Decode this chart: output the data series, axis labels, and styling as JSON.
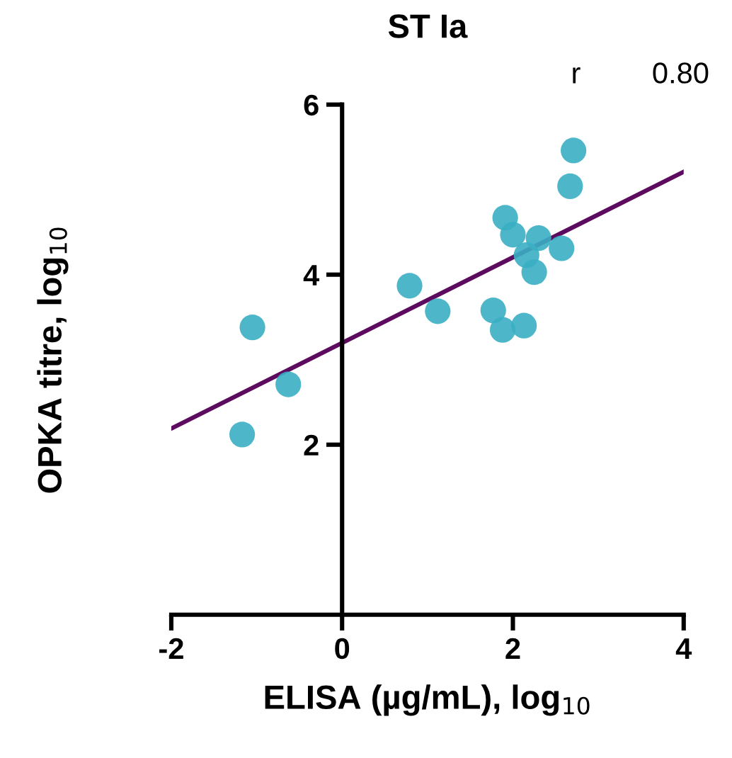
{
  "chart_data": {
    "type": "scatter",
    "title": "ST Ia",
    "xlabel": "ELISA (µg/mL), log$_{10}$",
    "ylabel": "OPKA titre, log$_{10}$",
    "annotations": [
      "r",
      "0.80"
    ],
    "xlim": [
      -2,
      4
    ],
    "ylim": [
      0,
      6
    ],
    "xticks": [
      -2,
      0,
      2,
      4
    ],
    "yticks": [
      2,
      4,
      6
    ],
    "grid": false,
    "legend": false,
    "series": [
      {
        "color": "#3aafc3",
        "marker": "circle",
        "x": [
          -1.05,
          -0.63,
          -1.17,
          0.79,
          1.12,
          1.77,
          1.88,
          2.13,
          1.91,
          2.0,
          2.3,
          2.16,
          2.25,
          2.57,
          2.67,
          2.71
        ],
        "values": [
          3.38,
          2.71,
          2.12,
          3.87,
          3.57,
          3.58,
          3.35,
          3.4,
          4.67,
          4.47,
          4.43,
          4.23,
          4.03,
          4.31,
          5.04,
          5.46
        ]
      },
      {
        "type": "line",
        "color": "#5c0b5e",
        "marker": "none",
        "line_style": "solid",
        "x": [
          -2,
          4
        ],
        "values": [
          2.19,
          5.21
        ]
      }
    ]
  }
}
